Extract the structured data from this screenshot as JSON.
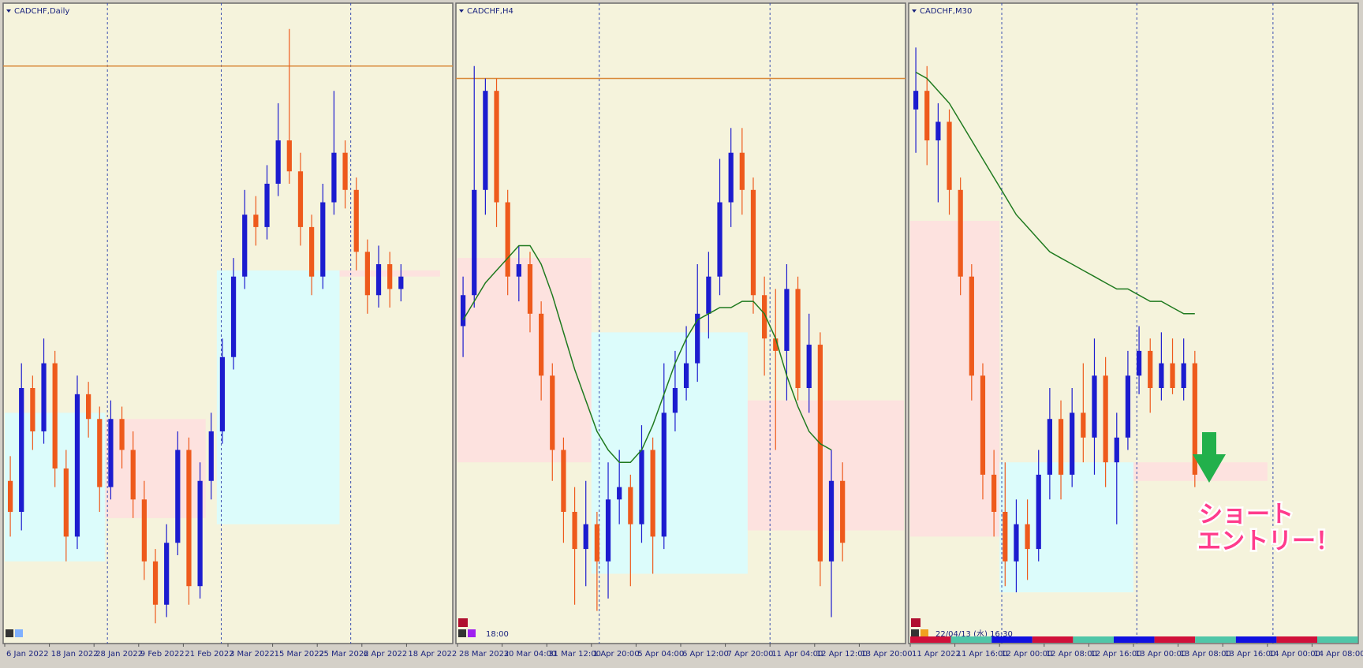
{
  "chart_data": [
    {
      "type": "candlestick",
      "title": "CADCHF,Daily",
      "up_color": "#1c1ccf",
      "down_color": "#ee5a1c",
      "categories": [
        "6 Jan 2022",
        null,
        null,
        null,
        "18 Jan 2022",
        null,
        null,
        null,
        "28 Jan 2022",
        null,
        null,
        null,
        "9 Feb 2022",
        null,
        null,
        null,
        "21 Feb 2022",
        null,
        null,
        null,
        "3 Mar 2022",
        null,
        null,
        null,
        "15 Mar 2022",
        null,
        null,
        null,
        "25 Mar 2022",
        null,
        null,
        null,
        "6 Apr 2022",
        null,
        null,
        null,
        "18 Apr 2022",
        null,
        null,
        null
      ],
      "candles": [
        [
          25,
          29,
          16,
          20
        ],
        [
          20,
          44,
          17,
          40
        ],
        [
          40,
          42,
          30,
          33
        ],
        [
          33,
          48,
          31,
          44
        ],
        [
          44,
          46,
          24,
          27
        ],
        [
          27,
          30,
          12,
          16
        ],
        [
          16,
          42,
          14,
          39
        ],
        [
          39,
          41,
          32,
          35
        ],
        [
          35,
          37,
          20,
          24
        ],
        [
          24,
          38,
          22,
          35
        ],
        [
          35,
          37,
          27,
          30
        ],
        [
          30,
          33,
          19,
          22
        ],
        [
          22,
          25,
          9,
          12
        ],
        [
          12,
          14,
          2,
          5
        ],
        [
          5,
          18,
          3,
          15
        ],
        [
          15,
          33,
          13,
          30
        ],
        [
          30,
          32,
          5,
          8
        ],
        [
          8,
          28,
          6,
          25
        ],
        [
          25,
          36,
          22,
          33
        ],
        [
          33,
          48,
          31,
          45
        ],
        [
          45,
          61,
          43,
          58
        ],
        [
          58,
          72,
          56,
          68
        ],
        [
          68,
          71,
          63,
          66
        ],
        [
          66,
          76,
          64,
          73
        ],
        [
          73,
          86,
          71,
          80
        ],
        [
          80,
          98,
          73,
          75
        ],
        [
          75,
          78,
          63,
          66
        ],
        [
          66,
          68,
          55,
          58
        ],
        [
          58,
          73,
          56,
          70
        ],
        [
          70,
          88,
          68,
          78
        ],
        [
          78,
          80,
          69,
          72
        ],
        [
          72,
          74,
          59,
          62
        ],
        [
          62,
          64,
          52,
          55
        ],
        [
          55,
          63,
          53,
          60
        ],
        [
          60,
          62,
          53,
          56
        ],
        [
          56,
          60,
          54,
          58
        ],
        null,
        null,
        null,
        null
      ],
      "zones": [
        {
          "color": "#dcfcfb",
          "from": 0,
          "to": 9,
          "low": 12,
          "high": 36
        },
        {
          "color": "#fde2df",
          "from": 9,
          "to": 18,
          "low": 19,
          "high": 35
        },
        {
          "color": "#dcfcfb",
          "from": 19,
          "to": 30,
          "low": 18,
          "high": 59
        },
        {
          "color": "#fde2df",
          "from": 30,
          "to": 39,
          "low": 58,
          "high": 59
        }
      ],
      "level_line": {
        "value": 92,
        "color": "#d98a3a"
      }
    },
    {
      "type": "candlestick",
      "title": "CADCHF,H4",
      "up_color": "#1c1ccf",
      "down_color": "#ee5a1c",
      "clock": "18:00",
      "categories": [
        "28 Mar 2022",
        null,
        null,
        null,
        "30 Mar 04:00",
        null,
        null,
        null,
        "31 Mar 12:00",
        null,
        null,
        null,
        "1 Apr 20:00",
        null,
        null,
        null,
        "5 Apr 04:00",
        null,
        null,
        null,
        "6 Apr 12:00",
        null,
        null,
        null,
        "7 Apr 20:00",
        null,
        null,
        null,
        "11 Apr 04:00",
        null,
        null,
        null,
        "12 Apr 12:00",
        null,
        null,
        null,
        "13 Apr 20:00",
        null,
        null,
        null
      ],
      "candles": [
        [
          50,
          58,
          45,
          55
        ],
        [
          55,
          92,
          53,
          72
        ],
        [
          72,
          90,
          68,
          88
        ],
        [
          88,
          90,
          66,
          70
        ],
        [
          70,
          72,
          55,
          58
        ],
        [
          58,
          63,
          54,
          60
        ],
        [
          60,
          62,
          49,
          52
        ],
        [
          52,
          54,
          38,
          42
        ],
        [
          42,
          44,
          25,
          30
        ],
        [
          30,
          32,
          15,
          20
        ],
        [
          20,
          24,
          5,
          14
        ],
        [
          14,
          25,
          8,
          18
        ],
        [
          18,
          20,
          4,
          12
        ],
        [
          12,
          28,
          6,
          22
        ],
        [
          22,
          30,
          18,
          24
        ],
        [
          24,
          26,
          8,
          18
        ],
        [
          18,
          34,
          15,
          30
        ],
        [
          30,
          32,
          10,
          16
        ],
        [
          16,
          44,
          14,
          36
        ],
        [
          36,
          46,
          33,
          40
        ],
        [
          40,
          50,
          38,
          44
        ],
        [
          44,
          60,
          41,
          52
        ],
        [
          52,
          62,
          48,
          58
        ],
        [
          58,
          77,
          55,
          70
        ],
        [
          70,
          82,
          66,
          78
        ],
        [
          78,
          82,
          68,
          72
        ],
        [
          72,
          74,
          52,
          55
        ],
        [
          55,
          58,
          42,
          48
        ],
        [
          48,
          56,
          30,
          46
        ],
        [
          46,
          60,
          38,
          56
        ],
        [
          56,
          58,
          38,
          40
        ],
        [
          40,
          52,
          36,
          47
        ],
        [
          47,
          49,
          8,
          12
        ],
        [
          12,
          30,
          3,
          25
        ],
        [
          25,
          28,
          12,
          15
        ],
        null,
        null,
        null,
        null,
        null
      ],
      "zones": [
        {
          "color": "#fde2df",
          "from": 0,
          "to": 12,
          "low": 28,
          "high": 61
        },
        {
          "color": "#dcfcfb",
          "from": 12,
          "to": 26,
          "low": 10,
          "high": 49
        },
        {
          "color": "#fde2df",
          "from": 26,
          "to": 40,
          "low": 17,
          "high": 38
        }
      ],
      "level_line": {
        "value": 90,
        "color": "#d98a3a"
      },
      "ma": {
        "color": "#1f7a1f",
        "values": [
          51,
          54,
          57,
          59,
          61,
          63,
          63,
          60,
          55,
          49,
          43,
          38,
          33,
          30,
          28,
          28,
          30,
          34,
          39,
          44,
          48,
          51,
          52,
          53,
          53,
          54,
          54,
          52,
          48,
          42,
          37,
          33,
          31,
          30,
          null,
          null,
          null,
          null,
          null,
          null
        ]
      }
    },
    {
      "type": "candlestick",
      "title": "CADCHF,M30",
      "up_color": "#1c1ccf",
      "down_color": "#ee5a1c",
      "clock": "22/04/13 (水) 16:30",
      "annotation": [
        "ショート",
        "エントリー！"
      ],
      "categories": [
        "11 Apr 2022",
        null,
        null,
        null,
        "11 Apr 16:00",
        null,
        null,
        null,
        "12 Apr 00:00",
        null,
        null,
        null,
        "12 Apr 08:00",
        null,
        null,
        null,
        "12 Apr 16:00",
        null,
        null,
        null,
        "13 Apr 00:00",
        null,
        null,
        null,
        "13 Apr 08:00",
        null,
        null,
        null,
        "13 Apr 16:00",
        null,
        null,
        null,
        "14 Apr 00:00",
        null,
        null,
        null,
        "14 Apr 08:00",
        null,
        null,
        null
      ],
      "candles": [
        [
          85,
          95,
          78,
          88
        ],
        [
          88,
          92,
          76,
          80
        ],
        [
          80,
          86,
          70,
          83
        ],
        [
          83,
          85,
          68,
          72
        ],
        [
          72,
          74,
          55,
          58
        ],
        [
          58,
          60,
          38,
          42
        ],
        [
          42,
          44,
          22,
          26
        ],
        [
          26,
          30,
          16,
          20
        ],
        [
          20,
          28,
          8,
          12
        ],
        [
          12,
          22,
          7,
          18
        ],
        [
          18,
          22,
          9,
          14
        ],
        [
          14,
          30,
          12,
          26
        ],
        [
          26,
          40,
          22,
          35
        ],
        [
          35,
          38,
          22,
          26
        ],
        [
          26,
          40,
          24,
          36
        ],
        [
          36,
          44,
          28,
          32
        ],
        [
          32,
          48,
          26,
          42
        ],
        [
          42,
          45,
          24,
          28
        ],
        [
          28,
          36,
          18,
          32
        ],
        [
          32,
          46,
          30,
          42
        ],
        [
          42,
          50,
          39,
          46
        ],
        [
          46,
          48,
          36,
          40
        ],
        [
          40,
          49,
          38,
          44
        ],
        [
          44,
          48,
          39,
          40
        ],
        [
          40,
          48,
          38,
          44
        ],
        [
          44,
          46,
          24,
          26
        ],
        null,
        null,
        null,
        null,
        null,
        null,
        null,
        null,
        null,
        null,
        null,
        null,
        null,
        null
      ],
      "zones": [
        {
          "color": "#fde2df",
          "from": 0,
          "to": 8,
          "low": 16,
          "high": 67
        },
        {
          "color": "#dcfcfb",
          "from": 8,
          "to": 20,
          "low": 7,
          "high": 28
        },
        {
          "color": "#fde2df",
          "from": 20,
          "to": 32,
          "low": 25,
          "high": 28
        }
      ],
      "ma": {
        "color": "#1f7a1f",
        "values": [
          91,
          90,
          88,
          86,
          83,
          80,
          77,
          74,
          71,
          68,
          66,
          64,
          62,
          61,
          60,
          59,
          58,
          57,
          56,
          56,
          55,
          54,
          54,
          53,
          52,
          52,
          null,
          null,
          null,
          null,
          null,
          null,
          null,
          null,
          null,
          null,
          null,
          null,
          null,
          null
        ]
      }
    }
  ]
}
